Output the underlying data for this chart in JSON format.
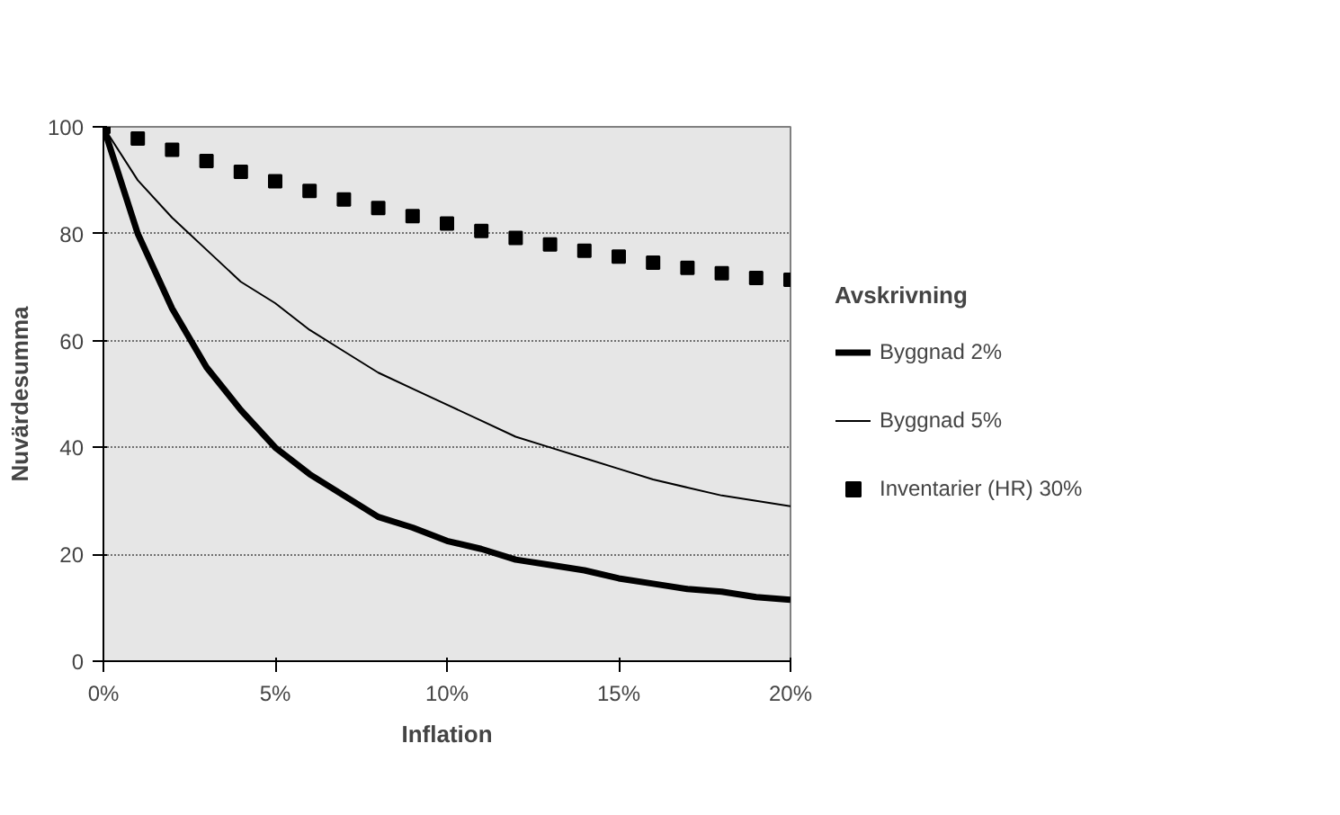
{
  "chart_data": {
    "type": "line",
    "xlabel": "Inflation",
    "ylabel": "Nuvärdesumma",
    "legend_title": "Avskrivning",
    "legend": "right",
    "grid": "y",
    "x": [
      0,
      1,
      2,
      3,
      4,
      5,
      6,
      7,
      8,
      9,
      10,
      11,
      12,
      13,
      14,
      15,
      16,
      17,
      18,
      19,
      20
    ],
    "xlim": [
      0,
      20
    ],
    "xticks": [
      {
        "value": 0,
        "label": "0%"
      },
      {
        "value": 5,
        "label": "5%"
      },
      {
        "value": 10,
        "label": "10%"
      },
      {
        "value": 15,
        "label": "15%"
      },
      {
        "value": 20,
        "label": "20%"
      }
    ],
    "ylim": [
      0,
      100
    ],
    "yticks": [
      0,
      20,
      40,
      60,
      80,
      100
    ],
    "series": [
      {
        "name": "Byggnad 2%",
        "color": "#000000",
        "values": [
          100,
          80,
          66,
          55,
          47,
          40,
          35,
          31,
          27,
          25,
          22.5,
          21,
          19,
          18,
          17,
          15.5,
          14.5,
          13.5,
          13,
          12,
          11.5
        ]
      },
      {
        "name": "Byggnad 5%",
        "color": "#000000",
        "values": [
          100,
          90,
          83,
          77,
          71,
          67,
          62,
          58,
          54,
          51,
          48,
          45,
          42,
          40,
          38,
          36,
          34,
          32.5,
          31,
          30,
          29
        ]
      },
      {
        "name": "Inventarier (HR) 30%",
        "type": "scatter",
        "marker": "square",
        "color": "#000000",
        "values": [
          100,
          97.8,
          95.7,
          93.6,
          91.6,
          89.8,
          88,
          86.4,
          84.8,
          83.3,
          81.9,
          80.5,
          79.2,
          78,
          76.8,
          75.7,
          74.6,
          73.6,
          72.6,
          71.7,
          71.4
        ]
      }
    ]
  }
}
